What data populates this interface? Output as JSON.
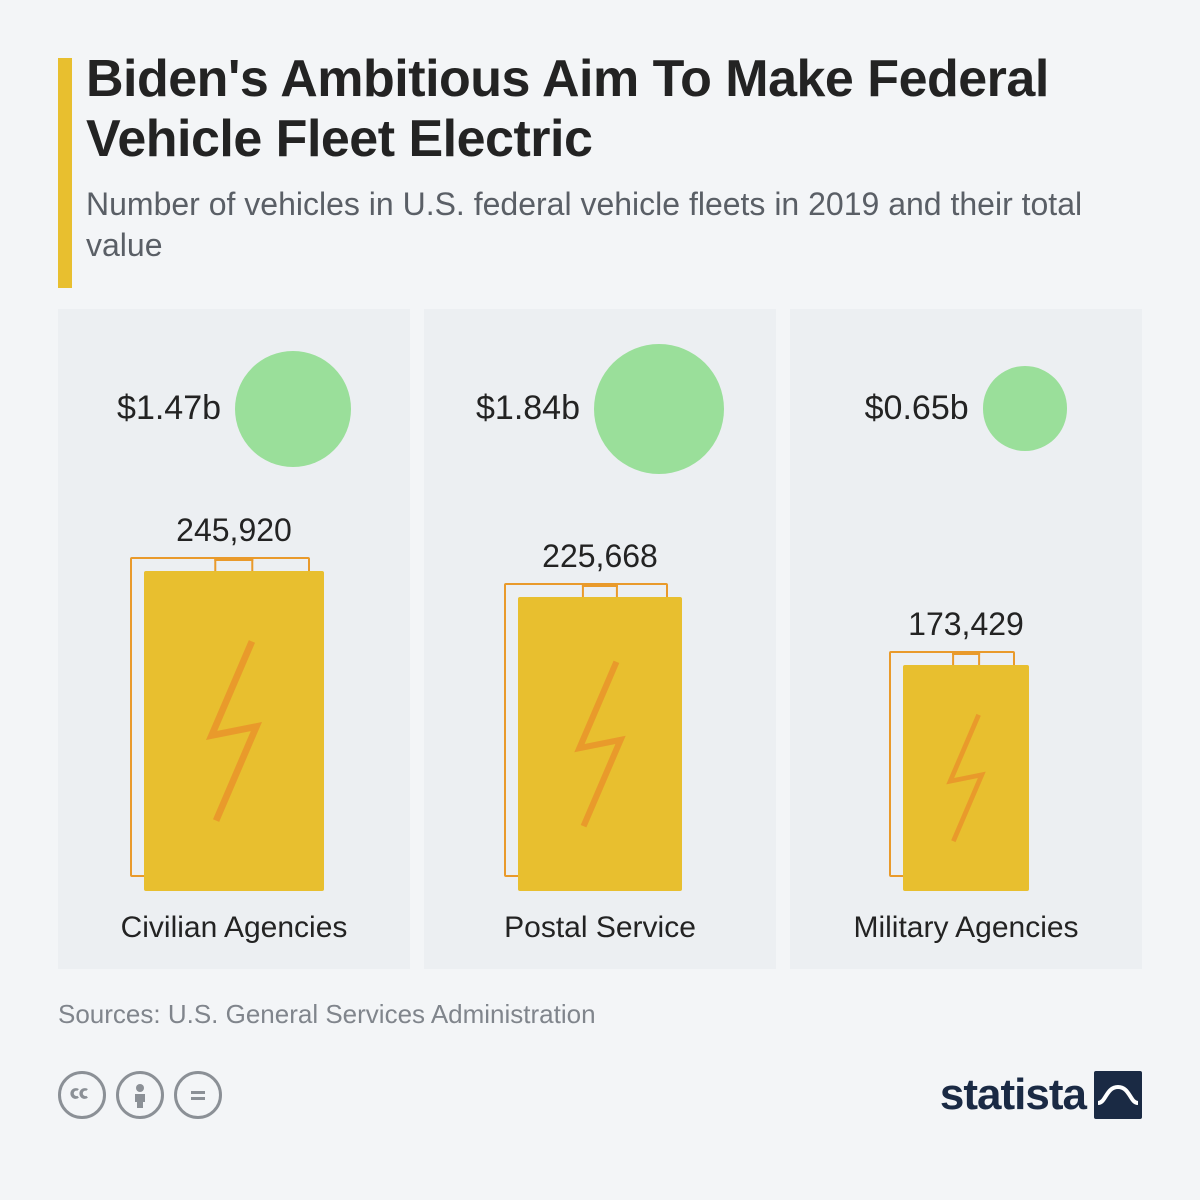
{
  "title": "Biden's Ambitious Aim To Make Federal Vehicle Fleet Electric",
  "subtitle": "Number of vehicles in U.S. federal vehicle fleets in 2019 and their total value",
  "sources": "Sources: U.S. General Services Administration",
  "brand": "statista",
  "colors": {
    "page_bg": "#f3f5f7",
    "panel_bg": "#eceff2",
    "accent": "#e8bf2f",
    "outline": "#e99a2b",
    "circle": "#9adf9a",
    "text": "#232323",
    "muted": "#80858c"
  },
  "chart": {
    "type": "infographic",
    "circle_max_diameter": 130,
    "circle_min_diameter": 60,
    "value_max": 1.84,
    "battery_max_height": 320,
    "battery_width_ratio": 0.56,
    "count_max": 245920,
    "value_fontsize": 34,
    "count_fontsize": 32,
    "category_fontsize": 30
  },
  "items": [
    {
      "category": "Civilian Agencies",
      "value_label": "$1.47b",
      "value": 1.47,
      "count_label": "245,920",
      "count": 245920
    },
    {
      "category": "Postal Service",
      "value_label": "$1.84b",
      "value": 1.84,
      "count_label": "225,668",
      "count": 225668
    },
    {
      "category": "Military Agencies",
      "value_label": "$0.65b",
      "value": 0.65,
      "count_label": "173,429",
      "count": 173429
    }
  ]
}
